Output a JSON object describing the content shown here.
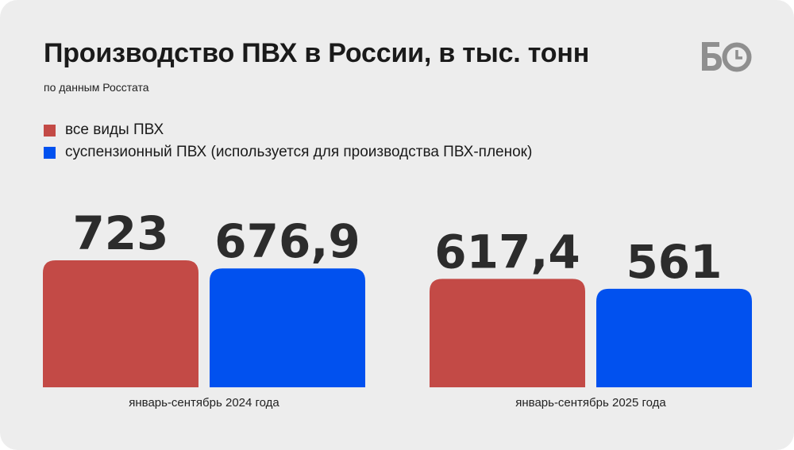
{
  "header": {
    "title": "Производство ПВХ в России, в тыс. тонн",
    "subtitle": "по данным Росстата"
  },
  "logo": {
    "icon": "bo-clock-logo",
    "color": "#8f8f8f"
  },
  "chart_data": {
    "type": "bar",
    "title": "Производство ПВХ в России, в тыс. тонн",
    "subtitle": "по данным Росстата",
    "categories": [
      "январь-сентябрь 2024 года",
      "январь-сентябрь 2025 года"
    ],
    "series": [
      {
        "name": "все виды ПВХ",
        "color": "#c34a46",
        "values": [
          723,
          617.4
        ],
        "labels": [
          "723",
          "617,4"
        ]
      },
      {
        "name": "суспензионный ПВХ (используется для производства ПВХ-пленок)",
        "color": "#0151ef",
        "values": [
          676.9,
          561
        ],
        "labels": [
          "676,9",
          "561"
        ]
      }
    ],
    "legend_position": "top-left",
    "grid": false,
    "axes_visible": false
  }
}
